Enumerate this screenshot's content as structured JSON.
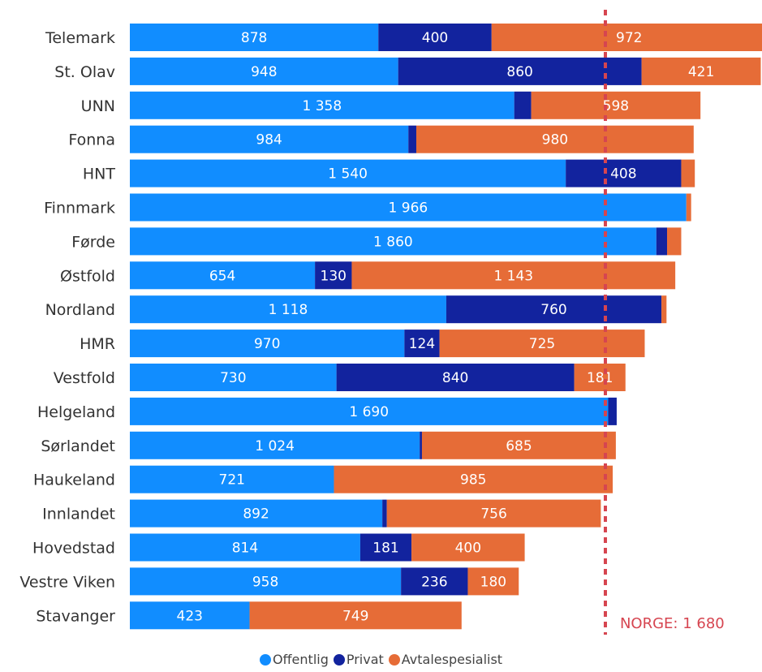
{
  "chart_data": {
    "type": "bar",
    "orientation": "horizontal",
    "stacked": true,
    "categories": [
      "Telemark",
      "St. Olav",
      "UNN",
      "Fonna",
      "HNT",
      "Finnmark",
      "Førde",
      "Østfold",
      "Nordland",
      "HMR",
      "Vestfold",
      "Helgeland",
      "Sørlandet",
      "Haukeland",
      "Innlandet",
      "Hovedstad",
      "Vestre Viken",
      "Stavanger"
    ],
    "series": [
      {
        "name": "Offentlig",
        "color": "#118dff",
        "values": [
          878,
          948,
          1358,
          984,
          1540,
          1966,
          1860,
          654,
          1118,
          970,
          730,
          1690,
          1024,
          721,
          892,
          814,
          958,
          423
        ],
        "labels": [
          "878",
          "948",
          "1 358",
          "984",
          "1 540",
          "1 966",
          "1 860",
          "654",
          "1 118",
          "970",
          "730",
          "1 690",
          "1 024",
          "721",
          "892",
          "814",
          "958",
          "423"
        ]
      },
      {
        "name": "Privat",
        "color": "#12239e",
        "values": [
          400,
          860,
          60,
          28,
          408,
          0,
          38,
          130,
          760,
          124,
          840,
          30,
          8,
          0,
          16,
          181,
          236,
          0
        ],
        "labels": [
          "400",
          "860",
          "",
          "",
          "408",
          "",
          "",
          "130",
          "760",
          "124",
          "840",
          "",
          "",
          "",
          "",
          "181",
          "236",
          ""
        ]
      },
      {
        "name": "Avtalespesialist",
        "color": "#e66c37",
        "values": [
          972,
          421,
          598,
          980,
          48,
          17,
          50,
          1143,
          18,
          725,
          181,
          0,
          685,
          985,
          756,
          400,
          180,
          749
        ],
        "labels": [
          "972",
          "421",
          "598",
          "980",
          "",
          "",
          "",
          "1 143",
          "",
          "725",
          "181",
          "",
          "685",
          "985",
          "756",
          "400",
          "180",
          "749"
        ]
      }
    ],
    "reference_line": {
      "label": "NORGE: 1 680",
      "value": 1680,
      "color": "#d64550"
    },
    "legend": {
      "position": "bottom",
      "items": [
        "Offentlig",
        "Privat",
        "Avtalespesialist"
      ]
    },
    "xlim": [
      0,
      2250
    ],
    "grid": false
  }
}
